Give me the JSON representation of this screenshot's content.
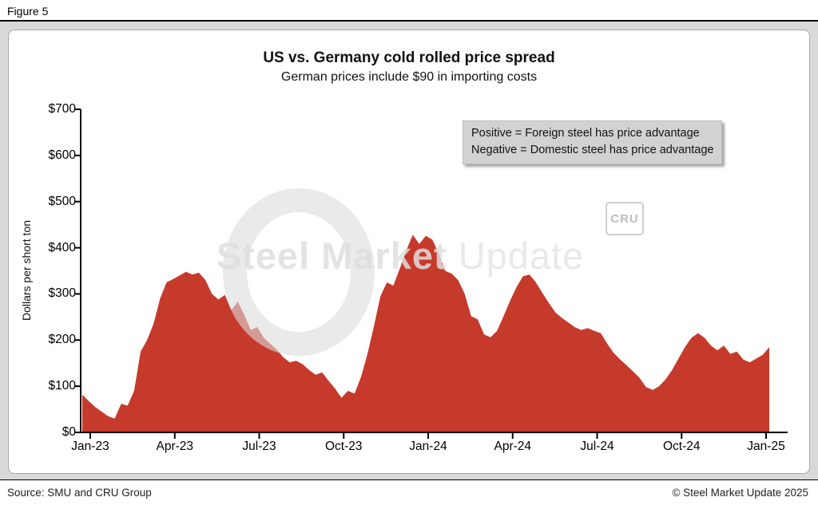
{
  "figure_label": "Figure 5",
  "chart": {
    "title": "US vs. Germany cold rolled price spread",
    "subtitle": "German prices include $90 in importing costs",
    "annotation": {
      "line1": "Positive = Foreign steel has price advantage",
      "line2": "Negative = Domestic steel has price advantage"
    },
    "watermark": {
      "bold_part": "Steel Market",
      "light_part": " Update",
      "logo_text": "CRU"
    }
  },
  "footer": {
    "source": "Source: SMU and CRU Group",
    "copyright": "© Steel Market Update 2025"
  },
  "chart_data": {
    "type": "area",
    "title": "US vs. Germany cold rolled price spread",
    "subtitle": "German prices include $90 in importing costs",
    "xlabel": "",
    "ylabel": "Dollars per short ton",
    "ylim": [
      0,
      700
    ],
    "grid": false,
    "legend_position": "none",
    "area_color": "#C63A2B",
    "axis_color": "#000000",
    "x_tick_labels": [
      "Jan-23",
      "Apr-23",
      "Jul-23",
      "Oct-23",
      "Jan-24",
      "Apr-24",
      "Jul-24",
      "Oct-24",
      "Jan-25"
    ],
    "y_tick_values": [
      0,
      100,
      200,
      300,
      400,
      500,
      600,
      700
    ],
    "y_tick_labels": [
      "$0",
      "$100",
      "$200",
      "$300",
      "$400",
      "$500",
      "$600",
      "$700"
    ],
    "x_unit": "weekly observations, Jan-23 to Jan-25",
    "values": [
      82,
      68,
      55,
      45,
      35,
      30,
      62,
      58,
      90,
      175,
      200,
      235,
      290,
      325,
      332,
      340,
      348,
      342,
      346,
      330,
      300,
      288,
      298,
      265,
      283,
      255,
      222,
      228,
      205,
      192,
      180,
      163,
      152,
      155,
      148,
      135,
      125,
      130,
      112,
      95,
      75,
      90,
      84,
      120,
      170,
      230,
      295,
      325,
      318,
      355,
      395,
      428,
      408,
      426,
      418,
      388,
      350,
      344,
      330,
      300,
      252,
      245,
      212,
      206,
      220,
      252,
      285,
      315,
      338,
      342,
      325,
      302,
      280,
      260,
      248,
      238,
      228,
      222,
      226,
      220,
      215,
      192,
      172,
      158,
      145,
      132,
      118,
      98,
      92,
      100,
      115,
      135,
      160,
      185,
      205,
      215,
      205,
      188,
      178,
      188,
      170,
      175,
      158,
      152,
      160,
      168,
      185
    ]
  }
}
